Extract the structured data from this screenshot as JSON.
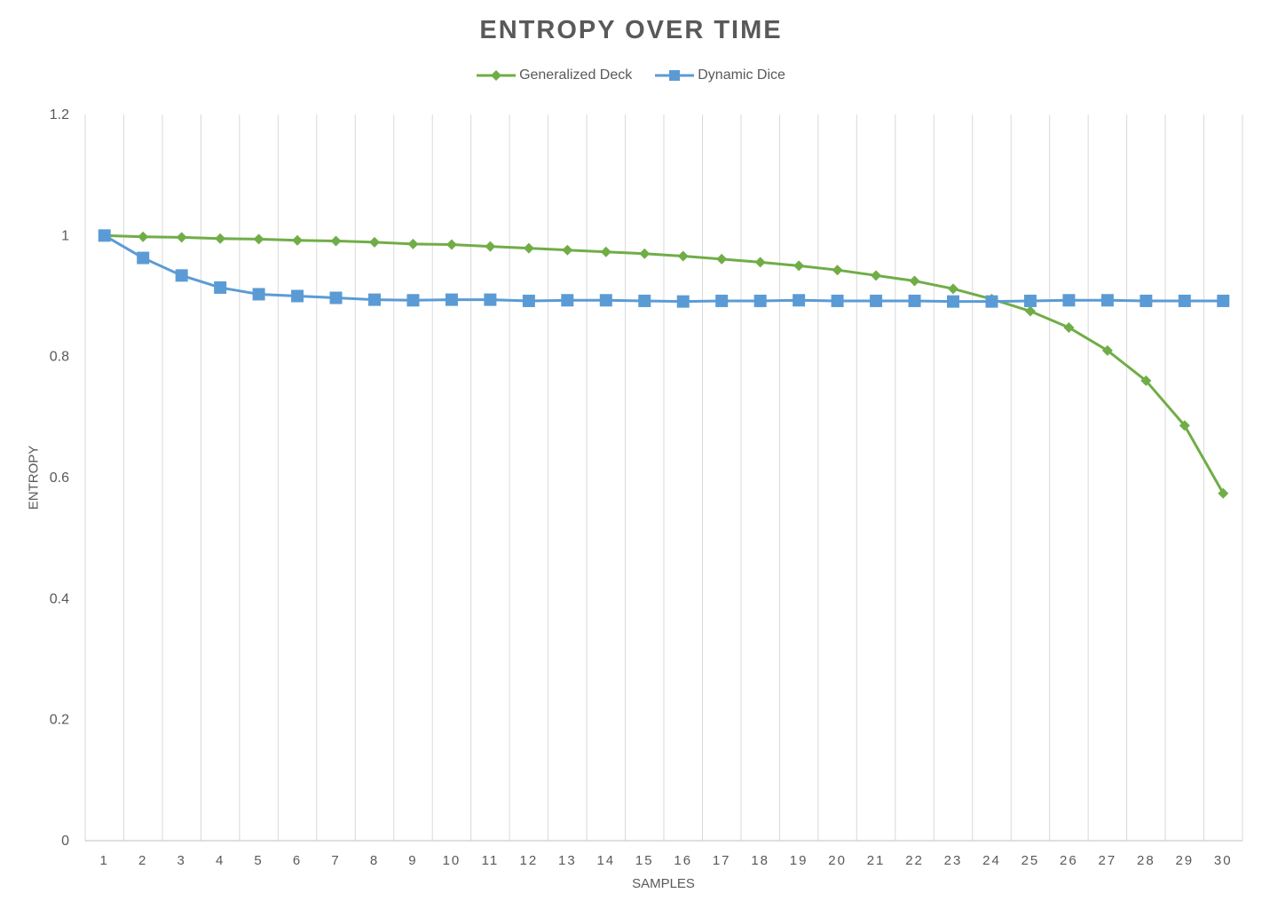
{
  "chart_data": {
    "type": "line",
    "title": "ENTROPY OVER TIME",
    "xlabel": "SAMPLES",
    "ylabel": "ENTROPY",
    "categories": [
      "1",
      "2",
      "3",
      "4",
      "5",
      "6",
      "7",
      "8",
      "9",
      "10",
      "11",
      "12",
      "13",
      "14",
      "15",
      "16",
      "17",
      "18",
      "19",
      "20",
      "21",
      "22",
      "23",
      "24",
      "25",
      "26",
      "27",
      "28",
      "29",
      "30"
    ],
    "ylim": [
      0,
      1.2
    ],
    "yticks": [
      "0",
      "0.2",
      "0.4",
      "0.6",
      "0.8",
      "1",
      "1.2"
    ],
    "grid": "vertical",
    "legend_position": "top",
    "series": [
      {
        "name": "Generalized Deck",
        "color": "#70AD47",
        "marker": "diamond",
        "values": [
          1.0,
          0.998,
          0.997,
          0.995,
          0.994,
          0.992,
          0.991,
          0.989,
          0.986,
          0.985,
          0.982,
          0.979,
          0.976,
          0.973,
          0.97,
          0.966,
          0.961,
          0.956,
          0.95,
          0.943,
          0.934,
          0.925,
          0.912,
          0.895,
          0.875,
          0.848,
          0.81,
          0.76,
          0.686,
          0.574
        ]
      },
      {
        "name": "Dynamic Dice",
        "color": "#5B9BD5",
        "marker": "square",
        "values": [
          1.0,
          0.963,
          0.934,
          0.914,
          0.903,
          0.9,
          0.897,
          0.894,
          0.893,
          0.894,
          0.894,
          0.892,
          0.893,
          0.893,
          0.892,
          0.891,
          0.892,
          0.892,
          0.893,
          0.892,
          0.892,
          0.892,
          0.891,
          0.891,
          0.892,
          0.893,
          0.893,
          0.892,
          0.892,
          0.892
        ]
      }
    ]
  }
}
